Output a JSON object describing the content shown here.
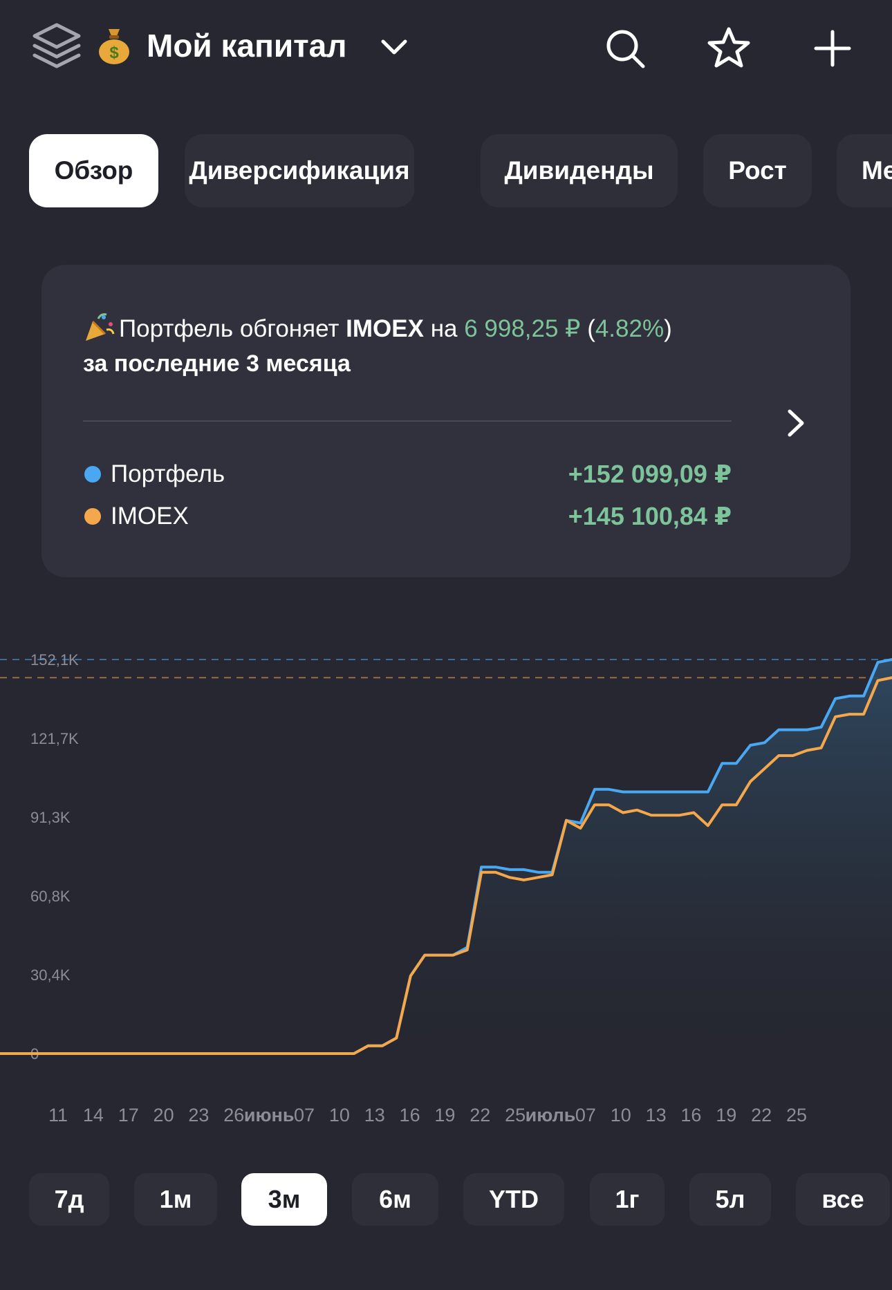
{
  "header": {
    "title": "Мой капитал",
    "logo_icon": "layers-icon",
    "emoji_icon": "money-bag-icon",
    "actions": [
      "search-icon",
      "star-icon",
      "plus-icon"
    ]
  },
  "tabs": [
    {
      "label": "Обзор",
      "active": true
    },
    {
      "label": "Диверсификация",
      "active": false
    },
    {
      "label": "Дивиденды",
      "active": false
    },
    {
      "label": "Рост",
      "active": false
    },
    {
      "label": "Ме",
      "active": false
    }
  ],
  "summary": {
    "prefix": "Портфель обгоняет",
    "index": "IMOEX",
    "mid": "на",
    "diff": "6 998,25 ₽",
    "pct_open": "(",
    "pct": "4.82%",
    "pct_close": ")",
    "period_text": "за последние 3 месяца",
    "legend": [
      {
        "name": "Портфель",
        "value": "+152 099,09 ₽",
        "color": "#4aa8f2"
      },
      {
        "name": "IMOEX",
        "value": "+145 100,84 ₽",
        "color": "#f5a84b"
      }
    ]
  },
  "chart_data": {
    "type": "line",
    "y_ticks": [
      "152,1K",
      "121,7K",
      "91,3K",
      "60,8K",
      "30,4K",
      "0"
    ],
    "ylim": [
      0,
      152100
    ],
    "x_tick_labels": [
      "11",
      "14",
      "17",
      "20",
      "23",
      "26",
      "июнь",
      "07",
      "10",
      "13",
      "16",
      "19",
      "22",
      "25",
      "июль",
      "07",
      "10",
      "13",
      "16",
      "19",
      "22",
      "25"
    ],
    "month_labels": [
      "июнь",
      "июль"
    ],
    "x": [
      0,
      5,
      10,
      15,
      20,
      25,
      30,
      33,
      36,
      38,
      40,
      42,
      44,
      46,
      48,
      50,
      52,
      54,
      56,
      58,
      60,
      62,
      64,
      66,
      68,
      70,
      72,
      74,
      76,
      78,
      80,
      82,
      84,
      86,
      88,
      90,
      92,
      94,
      96,
      98,
      100,
      102,
      104,
      106,
      108,
      110,
      112,
      114,
      116,
      118,
      120,
      122,
      124,
      126
    ],
    "series": [
      {
        "name": "Портфель",
        "color": "#4aa8f2",
        "values": [
          0,
          0,
          0,
          0,
          0,
          0,
          0,
          0,
          0,
          0,
          0,
          0,
          0,
          0,
          0,
          0,
          3000,
          3000,
          6000,
          30000,
          38000,
          38000,
          38000,
          41000,
          72000,
          72000,
          71000,
          71000,
          70000,
          70000,
          90000,
          89000,
          102000,
          102000,
          101000,
          101000,
          101000,
          101000,
          101000,
          101000,
          101000,
          112000,
          112000,
          119000,
          120000,
          125000,
          125000,
          125000,
          126000,
          137000,
          138000,
          138000,
          151000,
          152100
        ]
      },
      {
        "name": "IMOEX",
        "color": "#f5a84b",
        "values": [
          0,
          0,
          0,
          0,
          0,
          0,
          0,
          0,
          0,
          0,
          0,
          0,
          0,
          0,
          0,
          0,
          3000,
          3000,
          6000,
          30000,
          38000,
          38000,
          38000,
          40000,
          70000,
          70000,
          68000,
          67000,
          68000,
          69000,
          90000,
          87000,
          96000,
          96000,
          93000,
          94000,
          92000,
          92000,
          92000,
          93000,
          88000,
          96000,
          96000,
          105000,
          110000,
          115000,
          115000,
          117000,
          118000,
          130000,
          131000,
          131000,
          144000,
          145100
        ]
      }
    ],
    "reference_lines": [
      152100,
      145100
    ]
  },
  "periods": [
    {
      "label": "7д",
      "active": false
    },
    {
      "label": "1м",
      "active": false
    },
    {
      "label": "3м",
      "active": true
    },
    {
      "label": "6м",
      "active": false
    },
    {
      "label": "YTD",
      "active": false
    },
    {
      "label": "1г",
      "active": false
    },
    {
      "label": "5л",
      "active": false
    },
    {
      "label": "все",
      "active": false
    }
  ]
}
